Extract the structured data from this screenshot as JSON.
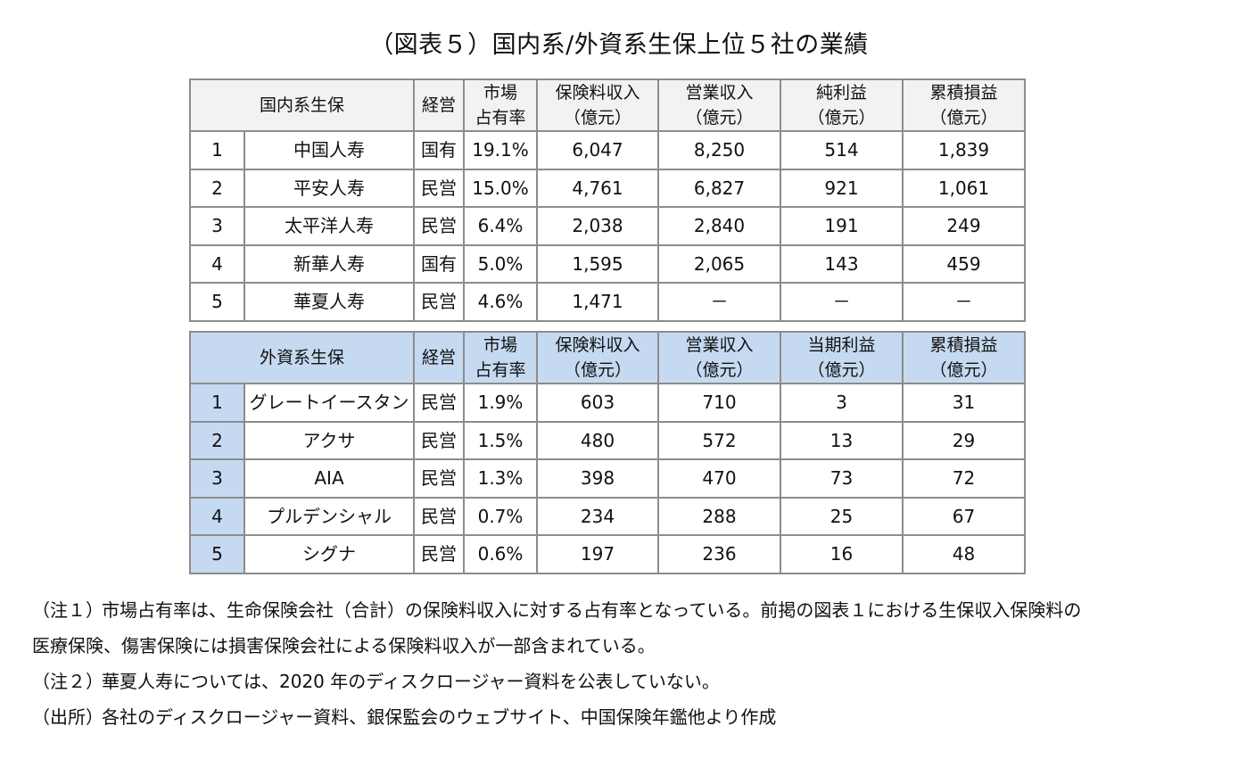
{
  "title": "（図表５）国内系/外資系生保上位５社の業績",
  "domestic": {
    "headers": [
      "国内系生保",
      "経営",
      "市場\n占有率",
      "保険料収入\n（億元）",
      "営業収入\n（億元）",
      "純利益\n（億元）",
      "累積損益\n（億元）"
    ],
    "rows": [
      [
        "1",
        "中国人寿",
        "国有",
        "19.1%",
        "6,047",
        "8,250",
        "514",
        "1,839"
      ],
      [
        "2",
        "平安人寿",
        "民営",
        "15.0%",
        "4,761",
        "6,827",
        "921",
        "1,061"
      ],
      [
        "3",
        "太平洋人寿",
        "民営",
        "6.4%",
        "2,038",
        "2,840",
        "191",
        "249"
      ],
      [
        "4",
        "新華人寿",
        "国有",
        "5.0%",
        "1,595",
        "2,065",
        "143",
        "459"
      ],
      [
        "5",
        "華夏人寿",
        "民営",
        "4.6%",
        "1,471",
        "－",
        "－",
        "－"
      ]
    ]
  },
  "foreign": {
    "headers": [
      "外資系生保",
      "経営",
      "市場\n占有率",
      "保険料収入\n（億元）",
      "営業収入\n（億元）",
      "当期利益\n（億元）",
      "累積損益\n（億元）"
    ],
    "rows": [
      [
        "1",
        "グレートイースタン",
        "民営",
        "1.9%",
        "603",
        "710",
        "3",
        "31"
      ],
      [
        "2",
        "アクサ",
        "民営",
        "1.5%",
        "480",
        "572",
        "13",
        "29"
      ],
      [
        "3",
        "AIA",
        "民営",
        "1.3%",
        "398",
        "470",
        "73",
        "72"
      ],
      [
        "4",
        "プルデンシャル",
        "民営",
        "0.7%",
        "234",
        "288",
        "25",
        "67"
      ],
      [
        "5",
        "シグナ",
        "民営",
        "0.6%",
        "197",
        "236",
        "16",
        "48"
      ]
    ]
  },
  "notes": [
    {
      "label": "（注１）",
      "text": "市場占有率は、生命保険会社（合計）の保険料収入に対する占有率となっている。前掲の図表１における生保収入保険料の",
      "cont": "医療保険、傷害保険には損害保険会社による保険料収入が一部含まれている。"
    },
    {
      "label": "（注２）",
      "text": "華夏人寿については、2020 年のディスクロージャー資料を公表していない。",
      "cont": ""
    },
    {
      "label": "（出所）",
      "text": "各社のディスクロージャー資料、銀保監会のウェブサイト、中国保険年鑑他より作成",
      "cont": ""
    }
  ]
}
